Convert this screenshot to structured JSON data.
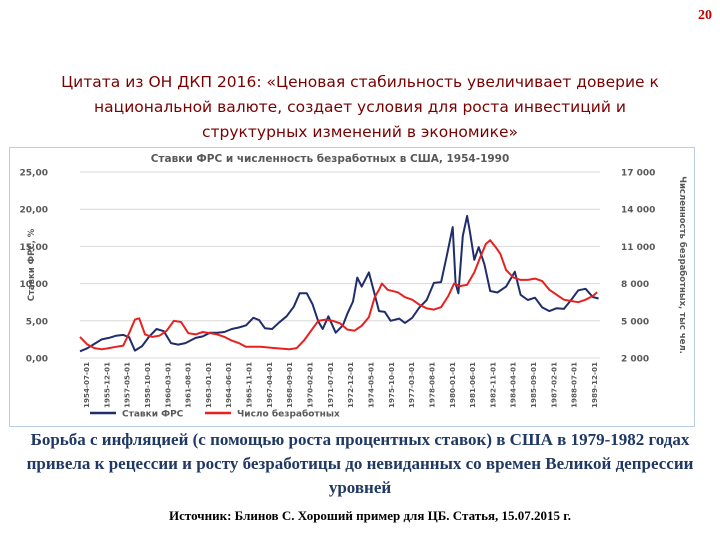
{
  "page": {
    "number": "20",
    "quote": "Цитата из ОН ДКП 2016: «Ценовая стабильность увеличивает доверие к национальной валюте, создает условия для роста инвестиций и структурных изменений в экономике»",
    "caption": "Борьба с инфляцией (с помощью роста процентных ставок) в США в 1979-1982 годах привела к рецессии  и росту безработицы до невиданных со времен Великой депрессии уровней",
    "source": "Источник: Блинов С. Хороший пример для ЦБ. Статья, 15.07.2015 г."
  },
  "colors": {
    "fed_rate": "#1f2d6b",
    "unemployment": "#e8211e",
    "grid": "#d9d9d9",
    "text": "#595959"
  },
  "chart_data": {
    "type": "line",
    "title": "Ставки ФРС и численность безработных в США, 1954-1990",
    "ylabel": "Ставки ФРС, %",
    "y2label": "Численность безработных, тыс чел.",
    "ylim": [
      0,
      25
    ],
    "y2lim": [
      2000,
      17000
    ],
    "yticks": [
      "0,00",
      "5,00",
      "10,00",
      "15,00",
      "20,00",
      "25,00"
    ],
    "y2ticks": [
      "2 000",
      "5 000",
      "8 000",
      "11 000",
      "14 000",
      "17 000"
    ],
    "grid": true,
    "legend_position": "bottom-left",
    "x_tick_labels": [
      "1954-07-01",
      "1955-12-01",
      "1957-05-01",
      "1958-10-01",
      "1960-03-01",
      "1961-08-01",
      "1963-01-01",
      "1964-06-01",
      "1965-11-01",
      "1967-04-01",
      "1968-09-01",
      "1970-02-01",
      "1971-07-01",
      "1972-12-01",
      "1974-05-01",
      "1975-10-01",
      "1977-03-01",
      "1978-08-01",
      "1980-01-01",
      "1981-06-01",
      "1982-11-01",
      "1984-04-01",
      "1985-09-01",
      "1987-02-01",
      "1988-07-01",
      "1989-12-01"
    ],
    "xlim": [
      1954.5,
      1990.5
    ],
    "series": [
      {
        "name": "Ставки ФРС",
        "axis": "left",
        "x": [
          1954.5,
          1955.0,
          1955.5,
          1956.0,
          1956.5,
          1957.0,
          1957.5,
          1957.9,
          1958.3,
          1958.8,
          1959.3,
          1959.8,
          1960.3,
          1960.8,
          1961.3,
          1961.8,
          1962.5,
          1963.0,
          1963.5,
          1964.0,
          1964.5,
          1965.0,
          1965.5,
          1966.0,
          1966.5,
          1966.9,
          1967.3,
          1967.8,
          1968.3,
          1968.8,
          1969.3,
          1969.7,
          1970.2,
          1970.6,
          1971.0,
          1971.3,
          1971.7,
          1972.2,
          1972.7,
          1973.0,
          1973.4,
          1973.7,
          1974.0,
          1974.5,
          1974.8,
          1975.2,
          1975.6,
          1976.0,
          1976.6,
          1977.0,
          1977.5,
          1978.0,
          1978.5,
          1979.0,
          1979.5,
          1979.9,
          1980.3,
          1980.5,
          1980.7,
          1981.0,
          1981.3,
          1981.5,
          1981.8,
          1982.1,
          1982.5,
          1982.9,
          1983.4,
          1984.0,
          1984.6,
          1985.0,
          1985.5,
          1986.0,
          1986.5,
          1987.0,
          1987.5,
          1988.0,
          1988.5,
          1989.0,
          1989.5,
          1990.0,
          1990.4
        ],
        "values": [
          0.9,
          1.3,
          1.9,
          2.5,
          2.7,
          3.0,
          3.1,
          2.8,
          1.0,
          1.6,
          2.9,
          3.9,
          3.6,
          2.0,
          1.8,
          2.0,
          2.7,
          2.9,
          3.4,
          3.4,
          3.5,
          3.9,
          4.1,
          4.4,
          5.4,
          5.1,
          4.0,
          3.9,
          4.8,
          5.6,
          6.9,
          8.7,
          8.7,
          7.2,
          4.9,
          3.9,
          5.6,
          3.4,
          4.4,
          5.9,
          7.6,
          10.8,
          9.6,
          11.5,
          9.3,
          6.3,
          6.2,
          5.0,
          5.3,
          4.7,
          5.4,
          6.8,
          7.8,
          10.1,
          10.2,
          13.8,
          17.6,
          10.0,
          8.7,
          16.4,
          19.1,
          16.9,
          13.2,
          14.9,
          12.6,
          9.0,
          8.8,
          9.6,
          11.6,
          8.5,
          7.8,
          8.1,
          6.8,
          6.3,
          6.7,
          6.6,
          7.8,
          9.1,
          9.3,
          8.2,
          8.0
        ]
      },
      {
        "name": "Число безработных",
        "axis": "right",
        "x": [
          1954.5,
          1955.0,
          1955.5,
          1956.0,
          1956.5,
          1957.0,
          1957.5,
          1957.9,
          1958.3,
          1958.6,
          1959.0,
          1959.5,
          1960.0,
          1960.5,
          1961.0,
          1961.5,
          1962.0,
          1962.5,
          1963.0,
          1963.5,
          1964.0,
          1964.5,
          1965.0,
          1965.5,
          1966.0,
          1967.0,
          1968.0,
          1969.0,
          1969.5,
          1970.0,
          1970.5,
          1971.0,
          1971.5,
          1972.0,
          1972.5,
          1973.0,
          1973.5,
          1974.0,
          1974.5,
          1974.9,
          1975.2,
          1975.4,
          1975.8,
          1976.5,
          1977.0,
          1977.5,
          1978.0,
          1978.5,
          1979.0,
          1979.5,
          1980.0,
          1980.4,
          1980.8,
          1981.3,
          1981.8,
          1982.2,
          1982.6,
          1982.9,
          1983.3,
          1983.6,
          1984.0,
          1984.5,
          1985.0,
          1985.5,
          1986.0,
          1986.5,
          1987.0,
          1987.5,
          1988.0,
          1988.5,
          1989.0,
          1989.5,
          1990.0,
          1990.3
        ],
        "values": [
          3700,
          3100,
          2800,
          2700,
          2800,
          2900,
          3000,
          4000,
          5100,
          5200,
          3900,
          3700,
          3800,
          4200,
          5000,
          4900,
          4000,
          3900,
          4100,
          4000,
          3900,
          3700,
          3400,
          3200,
          2900,
          2900,
          2800,
          2700,
          2800,
          3400,
          4200,
          5000,
          5100,
          5000,
          4800,
          4300,
          4200,
          4600,
          5300,
          6900,
          7500,
          8000,
          7500,
          7300,
          6900,
          6700,
          6300,
          6000,
          5900,
          6100,
          7000,
          8000,
          7800,
          7900,
          8900,
          10100,
          11200,
          11500,
          10900,
          10400,
          9100,
          8500,
          8300,
          8300,
          8400,
          8200,
          7500,
          7100,
          6700,
          6600,
          6500,
          6700,
          7000,
          7300
        ]
      }
    ]
  }
}
